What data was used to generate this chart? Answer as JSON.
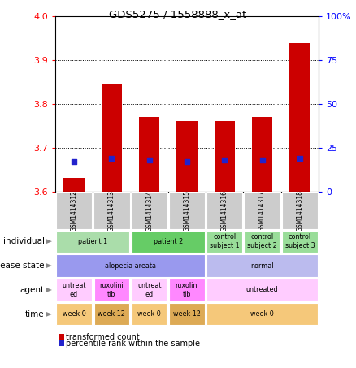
{
  "title": "GDS5275 / 1558888_x_at",
  "samples": [
    "GSM1414312",
    "GSM1414313",
    "GSM1414314",
    "GSM1414315",
    "GSM1414316",
    "GSM1414317",
    "GSM1414318"
  ],
  "transformed_count": [
    3.63,
    3.845,
    3.77,
    3.76,
    3.76,
    3.77,
    3.94
  ],
  "pr_values": [
    17,
    19,
    18,
    17,
    18,
    18,
    19
  ],
  "ylim": [
    3.6,
    4.0
  ],
  "y2lim": [
    0,
    100
  ],
  "yticks": [
    3.6,
    3.7,
    3.8,
    3.9,
    4.0
  ],
  "y2ticks": [
    0,
    25,
    50,
    75,
    100
  ],
  "bar_color": "#cc0000",
  "dot_color": "#2222cc",
  "bar_width": 0.55,
  "annotation_rows": [
    {
      "label": "individual",
      "cells": [
        {
          "text": "patient 1",
          "span": 2,
          "color": "#aaddaa"
        },
        {
          "text": "patient 2",
          "span": 2,
          "color": "#66cc66"
        },
        {
          "text": "control\nsubject 1",
          "span": 1,
          "color": "#99dd99"
        },
        {
          "text": "control\nsubject 2",
          "span": 1,
          "color": "#99dd99"
        },
        {
          "text": "control\nsubject 3",
          "span": 1,
          "color": "#99dd99"
        }
      ]
    },
    {
      "label": "disease state",
      "cells": [
        {
          "text": "alopecia areata",
          "span": 4,
          "color": "#9999ee"
        },
        {
          "text": "normal",
          "span": 3,
          "color": "#bbbbee"
        }
      ]
    },
    {
      "label": "agent",
      "cells": [
        {
          "text": "untreat\ned",
          "span": 1,
          "color": "#ffccff"
        },
        {
          "text": "ruxolini\ntib",
          "span": 1,
          "color": "#ff88ff"
        },
        {
          "text": "untreat\ned",
          "span": 1,
          "color": "#ffccff"
        },
        {
          "text": "ruxolini\ntib",
          "span": 1,
          "color": "#ff88ff"
        },
        {
          "text": "untreated",
          "span": 3,
          "color": "#ffccff"
        }
      ]
    },
    {
      "label": "time",
      "cells": [
        {
          "text": "week 0",
          "span": 1,
          "color": "#f5c87a"
        },
        {
          "text": "week 12",
          "span": 1,
          "color": "#ddaa55"
        },
        {
          "text": "week 0",
          "span": 1,
          "color": "#f5c87a"
        },
        {
          "text": "week 12",
          "span": 1,
          "color": "#ddaa55"
        },
        {
          "text": "week 0",
          "span": 3,
          "color": "#f5c87a"
        }
      ]
    }
  ],
  "legend": [
    {
      "label": "transformed count",
      "color": "#cc0000"
    },
    {
      "label": "percentile rank within the sample",
      "color": "#2222cc"
    }
  ],
  "sample_bg": "#cccccc"
}
